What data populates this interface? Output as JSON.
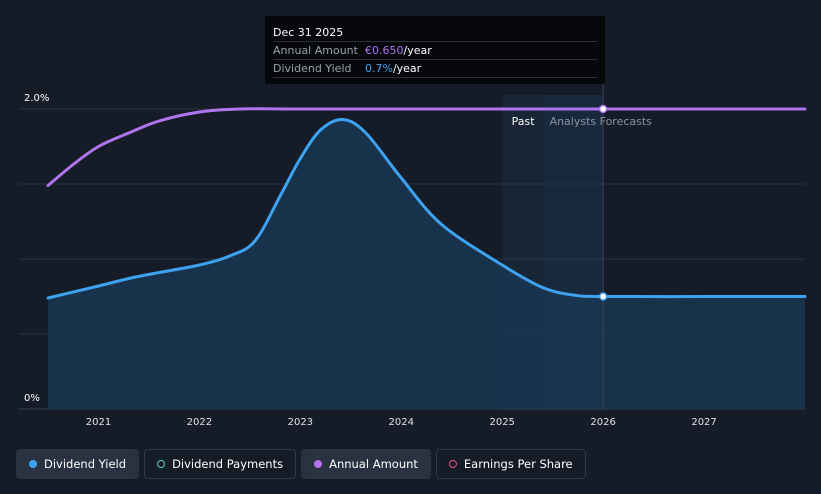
{
  "tooltip": {
    "date": "Dec 31 2025",
    "rows": [
      {
        "label": "Annual Amount",
        "value": "€0.650",
        "unit": "/year"
      },
      {
        "label": "Dividend Yield",
        "value": "0.7%",
        "unit": "/year"
      }
    ]
  },
  "regions": {
    "past": "Past",
    "forecast": "Analysts Forecasts"
  },
  "legend": [
    {
      "label": "Dividend Yield",
      "color": "#3da2f0",
      "filled": true,
      "active": true
    },
    {
      "label": "Dividend Payments",
      "color": "#5ad0c0",
      "filled": false,
      "active": false
    },
    {
      "label": "Annual Amount",
      "color": "#b074ee",
      "filled": true,
      "active": true
    },
    {
      "label": "Earnings Per Share",
      "color": "#e0507a",
      "filled": false,
      "active": false
    }
  ],
  "chart_data": {
    "type": "line",
    "xlim": [
      2020.5,
      2028.0
    ],
    "x_ticks": [
      2021,
      2022,
      2023,
      2024,
      2025,
      2026,
      2027
    ],
    "ylim": [
      0,
      2.0
    ],
    "y_ticks": [
      {
        "value": 2.0,
        "label": "2.0%"
      },
      {
        "value": 0,
        "label": "0%"
      }
    ],
    "gridlines": [
      0.5,
      1.0,
      1.5,
      2.0
    ],
    "past_end": 2025.0,
    "forecast_start": 2025.4,
    "marker_x": 2026.0,
    "series": [
      {
        "name": "Dividend Yield",
        "color": "#3da2f0",
        "fill": true,
        "points": [
          [
            2020.5,
            0.74
          ],
          [
            2021.0,
            0.82
          ],
          [
            2021.3,
            0.87
          ],
          [
            2021.6,
            0.91
          ],
          [
            2022.0,
            0.96
          ],
          [
            2022.3,
            1.02
          ],
          [
            2022.55,
            1.12
          ],
          [
            2022.8,
            1.42
          ],
          [
            2023.0,
            1.67
          ],
          [
            2023.2,
            1.86
          ],
          [
            2023.42,
            1.93
          ],
          [
            2023.65,
            1.84
          ],
          [
            2024.0,
            1.54
          ],
          [
            2024.4,
            1.23
          ],
          [
            2025.0,
            0.96
          ],
          [
            2025.4,
            0.81
          ],
          [
            2025.7,
            0.76
          ],
          [
            2026.0,
            0.75
          ],
          [
            2027.0,
            0.75
          ],
          [
            2028.0,
            0.75
          ]
        ]
      },
      {
        "name": "Annual Amount",
        "color": "#b074ee",
        "fill": false,
        "points": [
          [
            2020.5,
            1.49
          ],
          [
            2020.75,
            1.63
          ],
          [
            2021.0,
            1.75
          ],
          [
            2021.3,
            1.84
          ],
          [
            2021.6,
            1.92
          ],
          [
            2022.0,
            1.98
          ],
          [
            2022.4,
            2.0
          ],
          [
            2023.0,
            2.0
          ],
          [
            2024.0,
            2.0
          ],
          [
            2025.0,
            2.0
          ],
          [
            2026.0,
            2.0
          ],
          [
            2027.0,
            2.0
          ],
          [
            2028.0,
            2.0
          ]
        ]
      }
    ]
  }
}
